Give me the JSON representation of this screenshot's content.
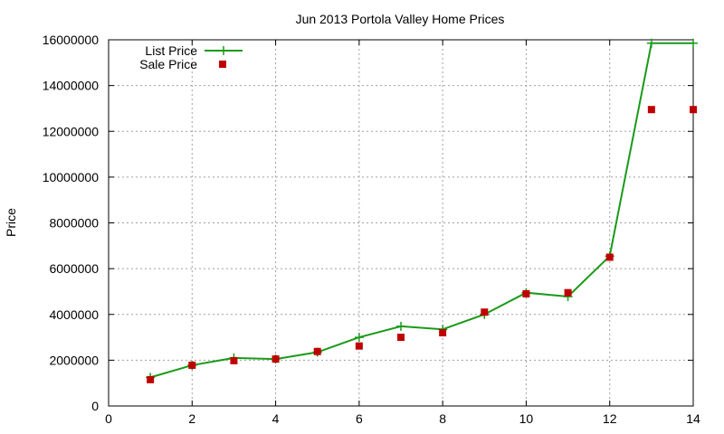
{
  "chart_data": {
    "type": "line",
    "title": "Jun 2013 Portola Valley Home Prices",
    "xlabel": "",
    "ylabel": "Price",
    "xlim": [
      0,
      14
    ],
    "ylim": [
      0,
      16000000
    ],
    "x_ticks": [
      "0",
      "2",
      "4",
      "6",
      "8",
      "10",
      "12",
      "14"
    ],
    "y_ticks": [
      "0",
      "2000000",
      "4000000",
      "6000000",
      "8000000",
      "10000000",
      "12000000",
      "14000000",
      "16000000"
    ],
    "grid": true,
    "legend_position": "top-left",
    "series": [
      {
        "name": "List Price",
        "style": "line-with-plus-markers",
        "color": "#1a9a1a",
        "x": [
          1,
          2,
          3,
          4,
          5,
          6,
          7,
          8,
          9,
          10,
          11,
          12,
          13,
          14
        ],
        "values": [
          1250000,
          1780000,
          2100000,
          2050000,
          2350000,
          3000000,
          3480000,
          3350000,
          4000000,
          4950000,
          4780000,
          6550000,
          15850000,
          15850000
        ]
      },
      {
        "name": "Sale Price",
        "style": "square-markers",
        "color": "#c00000",
        "x": [
          1,
          2,
          3,
          4,
          5,
          6,
          7,
          8,
          9,
          10,
          11,
          12,
          13,
          14
        ],
        "values": [
          1150000,
          1780000,
          1980000,
          2050000,
          2380000,
          2620000,
          3000000,
          3200000,
          4100000,
          4900000,
          4950000,
          6500000,
          12950000,
          12950000
        ]
      }
    ]
  }
}
